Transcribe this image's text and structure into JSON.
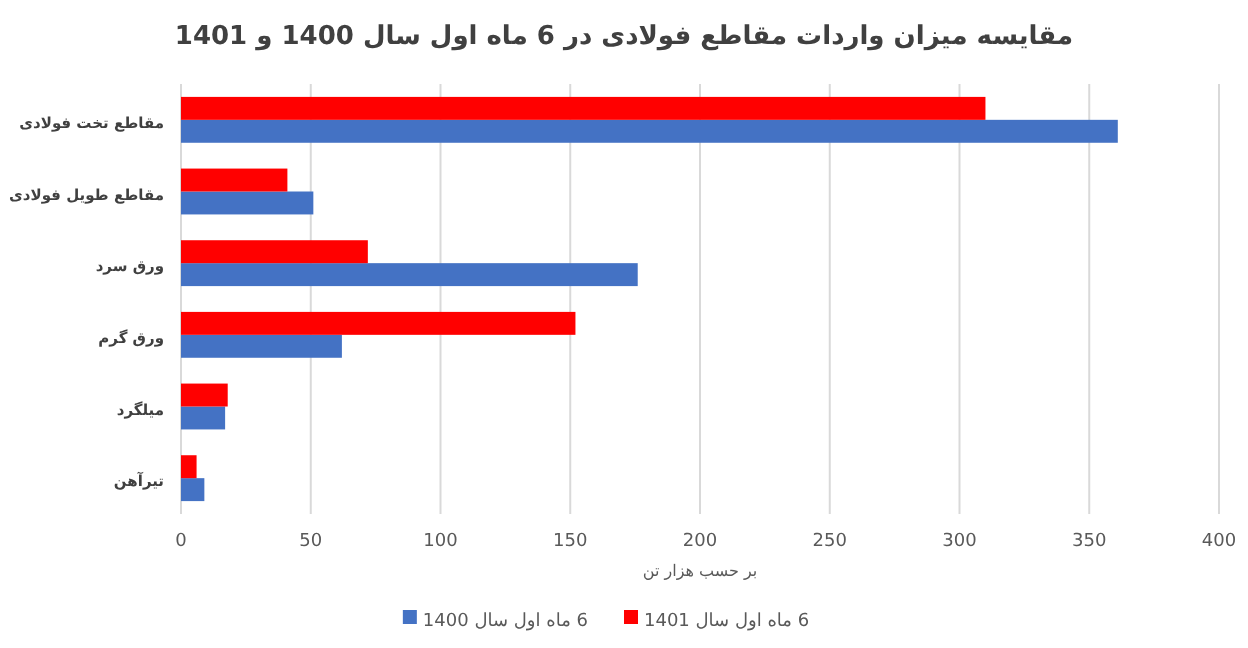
{
  "chart_data": {
    "type": "bar",
    "orientation": "horizontal",
    "title": "مقایسه میزان واردات مقاطع فولادی در 6 ماه اول سال 1400 و 1401",
    "xlabel": "بر حسب هزار تن",
    "categories": [
      "مقاطع تخت فولادی",
      "مقاطع طویل فولادی",
      "ورق سرد",
      "ورق گرم",
      "میلگرد",
      "تیرآهن"
    ],
    "series": [
      {
        "name": "6 ماه اول سال 1400",
        "color": "#4472c4",
        "values": [
          361,
          51,
          176,
          62,
          17,
          9
        ]
      },
      {
        "name": "6 ماه اول سال 1401",
        "color": "#ff0000",
        "values": [
          310,
          41,
          72,
          152,
          18,
          6
        ]
      }
    ],
    "xlim": [
      0,
      400
    ],
    "xticks": [
      0,
      50,
      100,
      150,
      200,
      250,
      300,
      350,
      400
    ],
    "grid": "x",
    "legend": "bottom"
  }
}
